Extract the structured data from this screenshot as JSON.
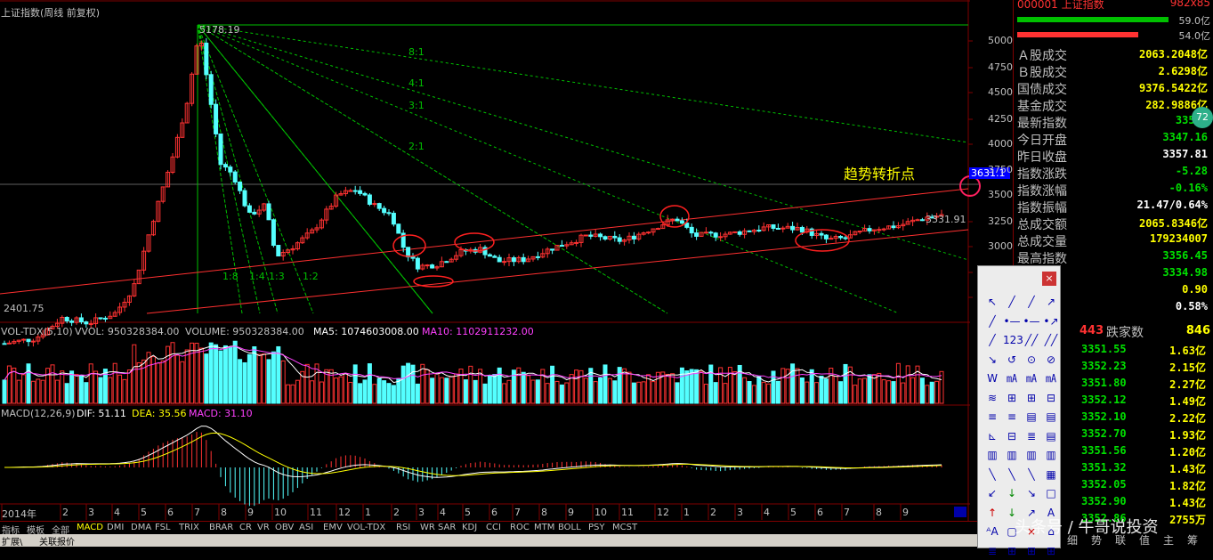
{
  "chart_title": "上证指数(周线 前复权)",
  "peak_label": "5178.19",
  "low_label": "2401.75",
  "last_label": "3331.91",
  "cross_label": "3631.1",
  "annotation": "趋势转折点",
  "fan_labels": [
    "8:1",
    "4:1",
    "3:1",
    "2:1",
    "1:8",
    "1:4",
    "1:3",
    "1:2"
  ],
  "y_axis": [
    "5000",
    "4750",
    "4500",
    "4250",
    "4000",
    "3750",
    "3500",
    "3250",
    "3000",
    "2750",
    "2500"
  ],
  "volume_header": {
    "name": "VOL-TDX(5,10)",
    "vvol": "VVOL: 950328384.00",
    "volume": "VOLUME: 950328384.00",
    "ma5": "MA5: 1074603008.00",
    "ma10": "MA10: 1102911232.00"
  },
  "macd_header": {
    "name": "MACD(12,26,9)",
    "dif": "DIF: 51.11",
    "dea": "DEA: 35.56",
    "macd": "MACD: 31.10"
  },
  "x_axis": [
    "2014年",
    "2",
    "3",
    "4",
    "5",
    "6",
    "7",
    "8",
    "9",
    "10",
    "11",
    "12",
    "1",
    "2",
    "3",
    "4",
    "5",
    "6",
    "7",
    "8",
    "9",
    "10",
    "11",
    "12",
    "1",
    "2",
    "3",
    "4",
    "5",
    "6",
    "7",
    "8",
    "9"
  ],
  "indicator_tabs": [
    "指标",
    "模板",
    "全部",
    "MACD",
    "DMI",
    "DMA",
    "FSL",
    "TRIX",
    "BRAR",
    "CR",
    "VR",
    "OBV",
    "ASI",
    "EMV",
    "VOL-TDX",
    "RSI",
    "WR",
    "SAR",
    "KDJ",
    "CCI",
    "ROC",
    "MTM",
    "BOLL",
    "PSY",
    "MCST"
  ],
  "bottom_tabs": [
    "扩展\\",
    "关联报价"
  ],
  "right_panel": {
    "header_code": "000001 上证指数",
    "header_right": "982x85",
    "bar1_value": "59.0亿",
    "bar2_value": "54.0亿",
    "rows": [
      {
        "label": "Ａ股成交",
        "value": "2063.2048亿",
        "color": "#ffff00"
      },
      {
        "label": "Ｂ股成交",
        "value": "2.6298亿",
        "color": "#ffff00"
      },
      {
        "label": "国债成交",
        "value": "9376.5422亿",
        "color": "#ffff00"
      },
      {
        "label": "基金成交",
        "value": "282.9886亿",
        "color": "#ffff00"
      },
      {
        "label": "最新指数",
        "value": "3352.",
        "color": "#00e000"
      },
      {
        "label": "今日开盘",
        "value": "3347.16",
        "color": "#00e000"
      },
      {
        "label": "昨日收盘",
        "value": "3357.81",
        "color": "#ffffff"
      },
      {
        "label": "指数涨跌",
        "value": "-5.28",
        "color": "#00e000"
      },
      {
        "label": "指数涨幅",
        "value": "-0.16%",
        "color": "#00e000"
      },
      {
        "label": "指数振幅",
        "value": "21.47/0.64%",
        "color": "#ffffff"
      },
      {
        "label": "总成交额",
        "value": "2065.8346亿",
        "color": "#ffff00"
      },
      {
        "label": "总成交量",
        "value": "179234007",
        "color": "#ffff00"
      },
      {
        "label": "最高指数",
        "value": "3356.45",
        "color": "#00e000"
      },
      {
        "label": "数",
        "value": "3334.98",
        "color": "#00e000"
      },
      {
        "label": "比",
        "value": "0.90",
        "color": "#ffff00"
      },
      {
        "label": "手",
        "value": "0.58%",
        "color": "#ffffff"
      }
    ],
    "badge": "72",
    "fall_label": "跌家数",
    "up_count": "443",
    "fall_count": "846",
    "ticks": [
      {
        "p": "3351.55",
        "v": "1.63亿"
      },
      {
        "p": "3352.23",
        "v": "2.15亿"
      },
      {
        "p": "3351.80",
        "v": "2.27亿"
      },
      {
        "p": "3352.12",
        "v": "1.49亿"
      },
      {
        "p": "3352.10",
        "v": "2.22亿"
      },
      {
        "p": "3352.70",
        "v": "1.93亿"
      },
      {
        "p": "3351.56",
        "v": "1.20亿"
      },
      {
        "p": "3351.32",
        "v": "1.43亿"
      },
      {
        "p": "3352.05",
        "v": "1.82亿"
      },
      {
        "p": "3352.90",
        "v": "1.43亿"
      },
      {
        "p": "3352.86",
        "v": "2755万"
      }
    ],
    "footer_tabs": [
      "细",
      "势",
      "联",
      "值",
      "主",
      "筹"
    ]
  },
  "watermark": "头条号 / 牛哥说投资",
  "drawing_tools": [
    "↖",
    "╱",
    "╱",
    "↗",
    "╱",
    "•—",
    "•—",
    "•↗",
    "╱",
    "123",
    "╱╱",
    "╱╱",
    "↘",
    "↺",
    "⊙",
    "⊘",
    "W",
    "㎃",
    "㎃",
    "㎃",
    "≋",
    "⊞",
    "⊞",
    "⊟",
    "≡",
    "≡",
    "▤",
    "▤",
    "⊾",
    "⊟",
    "≣",
    "▤",
    "▥",
    "▥",
    "▥",
    "▥",
    "╲",
    "╲",
    "╲",
    "▦",
    "↙",
    "↓",
    "↘",
    "□",
    "↑",
    "↓",
    "↗",
    "A",
    "ᴬA",
    "▢",
    "×",
    "⌂",
    "≣",
    "⊞",
    "⊞",
    "⊞"
  ],
  "colors": {
    "up": "#ff3232",
    "down": "#54ffff",
    "grid": "#800000",
    "fan": "#00c000",
    "channel": "#ff3030",
    "ma5": "#ffffff",
    "ma10": "#ff40ff",
    "accent": "#ffff00"
  }
}
